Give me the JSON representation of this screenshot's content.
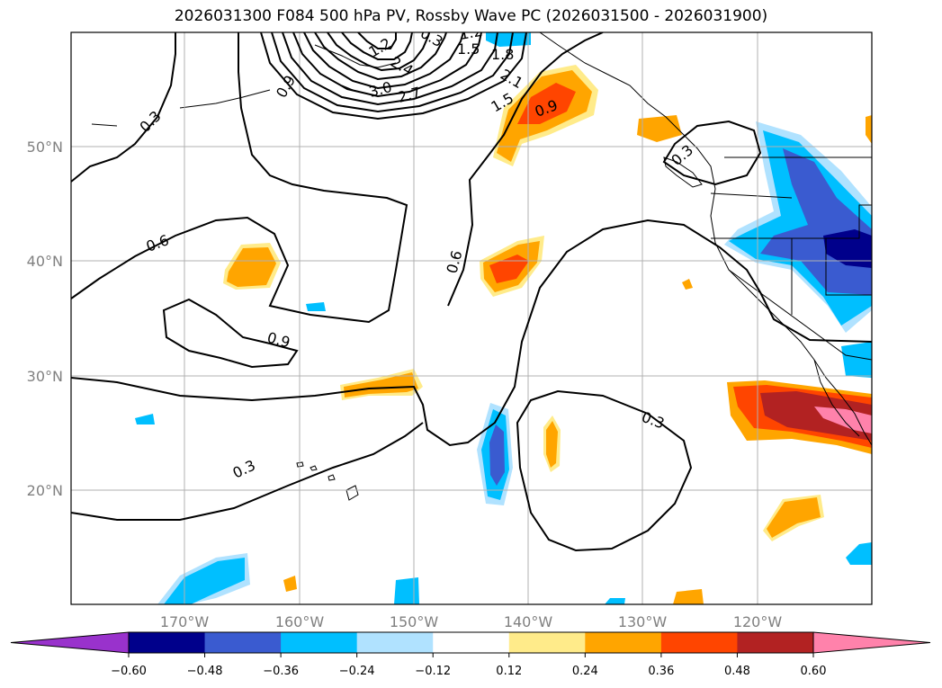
{
  "title": "2026031300 F084 500 hPa PV, Rossby Wave PC (2026031500 - 2026031900)",
  "lon_ticks": [
    "170°W",
    "160°W",
    "150°W",
    "140°W",
    "130°W",
    "120°W"
  ],
  "lat_ticks": [
    "50°N",
    "40°N",
    "30°N",
    "20°N"
  ],
  "contour_labels": [
    "0.3",
    "0.6",
    "0.9",
    "0.6",
    "0.9",
    "0.3",
    "0.3",
    "0.3",
    "1.5",
    "1.8",
    "2.1",
    "2.4",
    "3.0",
    "2.7",
    "1.5",
    "1.2",
    "0.9",
    "1.2",
    "0.3"
  ],
  "colorbar": {
    "ticks": [
      "−0.60",
      "−0.48",
      "−0.36",
      "−0.24",
      "−0.12",
      "0.12",
      "0.24",
      "0.36",
      "0.48",
      "0.60"
    ],
    "colors": [
      "#9932cc",
      "#00008b",
      "#3a5bd0",
      "#00bfff",
      "#b0e2ff",
      "#ffffff",
      "#ffeb8a",
      "#ffa500",
      "#ff4500",
      "#b22222",
      "#ff82ab"
    ]
  }
}
